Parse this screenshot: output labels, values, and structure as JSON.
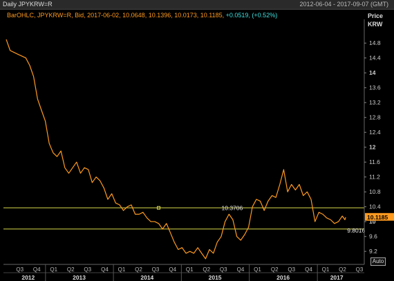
{
  "header": {
    "title": "Daily JPYKRW=R",
    "date_range": "2012-06-04 - 2017-09-07 (GMT)"
  },
  "legend": {
    "ohlc_text": "BarOHLC, JPYKRW=R, Bid, 2017-06-02, 10.0648, 10.1396, 10.0173, 10.1185,",
    "change_text": "+0.0519, (+0.52%)"
  },
  "price_axis": {
    "label_line1": "Price",
    "label_line2": "KRW"
  },
  "auto_button": "Auto",
  "colors": {
    "series": "#ff9a1f",
    "hline": "#d8d84a",
    "last_price_bg": "#ff9a1f",
    "change": "#3ee0e0"
  },
  "chart_data": {
    "type": "line",
    "series": [
      {
        "values": [
          [
            "2012-06-04",
            14.9
          ],
          [
            "2012-06-25",
            14.6
          ],
          [
            "2012-07-16",
            14.55
          ],
          [
            "2012-08-06",
            14.5
          ],
          [
            "2012-08-27",
            14.45
          ],
          [
            "2012-09-17",
            14.4
          ],
          [
            "2012-10-08",
            14.2
          ],
          [
            "2012-10-29",
            13.9
          ],
          [
            "2012-11-19",
            13.3
          ],
          [
            "2012-12-10",
            13.0
          ],
          [
            "2012-12-31",
            12.7
          ],
          [
            "2013-01-21",
            12.1
          ],
          [
            "2013-02-11",
            11.85
          ],
          [
            "2013-03-04",
            11.75
          ],
          [
            "2013-03-25",
            11.9
          ],
          [
            "2013-04-15",
            11.45
          ],
          [
            "2013-05-06",
            11.3
          ],
          [
            "2013-05-27",
            11.45
          ],
          [
            "2013-06-17",
            11.6
          ],
          [
            "2013-07-08",
            11.3
          ],
          [
            "2013-07-29",
            11.45
          ],
          [
            "2013-08-19",
            11.4
          ],
          [
            "2013-09-09",
            11.05
          ],
          [
            "2013-09-30",
            11.2
          ],
          [
            "2013-10-21",
            11.1
          ],
          [
            "2013-11-11",
            10.9
          ],
          [
            "2013-12-02",
            10.6
          ],
          [
            "2013-12-23",
            10.75
          ],
          [
            "2014-01-13",
            10.5
          ],
          [
            "2014-02-03",
            10.45
          ],
          [
            "2014-02-24",
            10.3
          ],
          [
            "2014-03-17",
            10.4
          ],
          [
            "2014-04-07",
            10.45
          ],
          [
            "2014-04-28",
            10.2
          ],
          [
            "2014-05-19",
            10.2
          ],
          [
            "2014-06-09",
            10.25
          ],
          [
            "2014-06-30",
            10.1
          ],
          [
            "2014-07-21",
            10.0
          ],
          [
            "2014-08-11",
            10.0
          ],
          [
            "2014-09-01",
            9.95
          ],
          [
            "2014-09-22",
            9.8
          ],
          [
            "2014-10-13",
            9.95
          ],
          [
            "2014-11-03",
            9.7
          ],
          [
            "2014-11-24",
            9.45
          ],
          [
            "2014-12-15",
            9.25
          ],
          [
            "2015-01-05",
            9.3
          ],
          [
            "2015-01-26",
            9.15
          ],
          [
            "2015-02-16",
            9.2
          ],
          [
            "2015-03-09",
            9.15
          ],
          [
            "2015-03-30",
            9.3
          ],
          [
            "2015-04-20",
            9.15
          ],
          [
            "2015-05-11",
            9.0
          ],
          [
            "2015-06-01",
            9.25
          ],
          [
            "2015-06-22",
            9.15
          ],
          [
            "2015-07-13",
            9.45
          ],
          [
            "2015-08-03",
            9.6
          ],
          [
            "2015-08-24",
            10.0
          ],
          [
            "2015-09-14",
            10.2
          ],
          [
            "2015-10-05",
            10.05
          ],
          [
            "2015-10-26",
            9.6
          ],
          [
            "2015-11-16",
            9.5
          ],
          [
            "2015-12-07",
            9.65
          ],
          [
            "2015-12-28",
            9.85
          ],
          [
            "2016-01-18",
            10.4
          ],
          [
            "2016-02-08",
            10.6
          ],
          [
            "2016-02-29",
            10.55
          ],
          [
            "2016-03-21",
            10.3
          ],
          [
            "2016-04-11",
            10.55
          ],
          [
            "2016-05-02",
            10.7
          ],
          [
            "2016-05-23",
            10.65
          ],
          [
            "2016-06-13",
            11.0
          ],
          [
            "2016-07-04",
            11.4
          ],
          [
            "2016-07-25",
            10.8
          ],
          [
            "2016-08-15",
            11.0
          ],
          [
            "2016-09-05",
            10.85
          ],
          [
            "2016-09-26",
            11.0
          ],
          [
            "2016-10-17",
            10.7
          ],
          [
            "2016-11-07",
            10.8
          ],
          [
            "2016-11-28",
            10.6
          ],
          [
            "2016-12-19",
            10.0
          ],
          [
            "2017-01-09",
            10.25
          ],
          [
            "2017-01-30",
            10.2
          ],
          [
            "2017-02-20",
            10.1
          ],
          [
            "2017-03-13",
            10.05
          ],
          [
            "2017-04-03",
            9.95
          ],
          [
            "2017-04-24",
            10.0
          ],
          [
            "2017-05-15",
            10.15
          ],
          [
            "2017-05-29",
            10.05
          ],
          [
            "2017-06-02",
            10.1185
          ]
        ]
      }
    ],
    "hlines": [
      {
        "y": 10.3706,
        "label": "10.3706"
      },
      {
        "y": 9.8016,
        "label": "9.8016"
      }
    ],
    "marker": {
      "date": "2014-09-01",
      "y": 10.3706
    },
    "last_price_label": "10.1185",
    "y_ticks": [
      {
        "v": 14.8,
        "t": "14.8"
      },
      {
        "v": 14.4,
        "t": "14.4"
      },
      {
        "v": 14.0,
        "t": "14"
      },
      {
        "v": 13.6,
        "t": "13.6"
      },
      {
        "v": 13.2,
        "t": "13.2"
      },
      {
        "v": 12.8,
        "t": "12.8"
      },
      {
        "v": 12.4,
        "t": "12.4"
      },
      {
        "v": 12.0,
        "t": "12"
      },
      {
        "v": 11.6,
        "t": "11.6"
      },
      {
        "v": 11.2,
        "t": "11.2"
      },
      {
        "v": 10.8,
        "t": "10.8"
      },
      {
        "v": 10.4,
        "t": "10.4"
      },
      {
        "v": 10.0,
        "t": "10"
      },
      {
        "v": 9.6,
        "t": "9.6"
      },
      {
        "v": 9.2,
        "t": "9.2"
      }
    ],
    "ylim": [
      8.85,
      15.4
    ],
    "xlim": [
      "2012-05-20",
      "2017-09-10"
    ],
    "quarter_ticks": [
      {
        "d": "2012-08-16",
        "t": "Q3"
      },
      {
        "d": "2012-11-15",
        "t": "Q4"
      },
      {
        "d": "2013-02-14",
        "t": "Q1"
      },
      {
        "d": "2013-05-16",
        "t": "Q2"
      },
      {
        "d": "2013-08-15",
        "t": "Q3"
      },
      {
        "d": "2013-11-15",
        "t": "Q4"
      },
      {
        "d": "2014-02-14",
        "t": "Q1"
      },
      {
        "d": "2014-05-16",
        "t": "Q2"
      },
      {
        "d": "2014-08-15",
        "t": "Q3"
      },
      {
        "d": "2014-11-15",
        "t": "Q4"
      },
      {
        "d": "2015-02-14",
        "t": "Q1"
      },
      {
        "d": "2015-05-16",
        "t": "Q2"
      },
      {
        "d": "2015-08-15",
        "t": "Q3"
      },
      {
        "d": "2015-11-15",
        "t": "Q4"
      },
      {
        "d": "2016-02-14",
        "t": "Q1"
      },
      {
        "d": "2016-05-16",
        "t": "Q2"
      },
      {
        "d": "2016-08-15",
        "t": "Q3"
      },
      {
        "d": "2016-11-15",
        "t": "Q4"
      },
      {
        "d": "2017-02-14",
        "t": "Q1"
      },
      {
        "d": "2017-05-16",
        "t": "Q2"
      },
      {
        "d": "2017-08-15",
        "t": "Q3"
      }
    ],
    "year_ticks": [
      {
        "d": "2012-09-30",
        "t": "2012"
      },
      {
        "d": "2013-07-01",
        "t": "2013"
      },
      {
        "d": "2014-07-01",
        "t": "2014"
      },
      {
        "d": "2015-07-01",
        "t": "2015"
      },
      {
        "d": "2016-07-01",
        "t": "2016"
      },
      {
        "d": "2017-04-15",
        "t": "2017"
      }
    ],
    "year_boundaries": [
      "2013-01-01",
      "2014-01-01",
      "2015-01-01",
      "2016-01-01",
      "2017-01-01"
    ],
    "grid": false
  }
}
